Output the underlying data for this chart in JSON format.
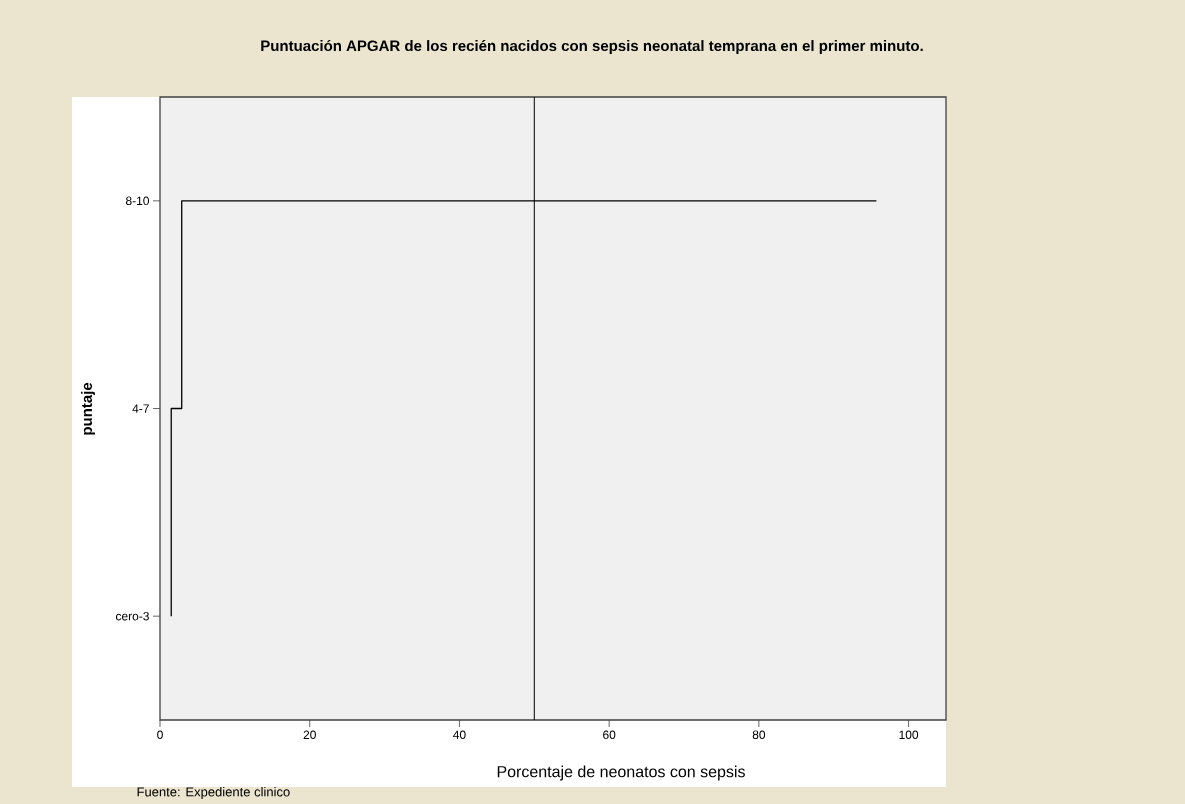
{
  "chart_data": {
    "type": "step",
    "orientation": "horizontal",
    "title": "Puntuación APGAR de los recién nacidos con sepsis neonatal temprana en el primer minuto.",
    "xlabel": "Porcentaje de neonatos con sepsis",
    "ylabel": "puntaje",
    "annotations": [
      "Fuente: Expediente clinico"
    ],
    "categories": [
      "8-10",
      "4-7",
      "cero-3"
    ],
    "values": [
      95.7,
      2.9,
      1.5
    ],
    "color": "#000000",
    "xlim": [
      0,
      105
    ],
    "xticks": [
      0,
      20,
      40,
      60,
      80,
      100
    ],
    "ref_lines": [
      {
        "axis": "x",
        "value": 50,
        "color": "#000000"
      }
    ],
    "grid": false
  }
}
